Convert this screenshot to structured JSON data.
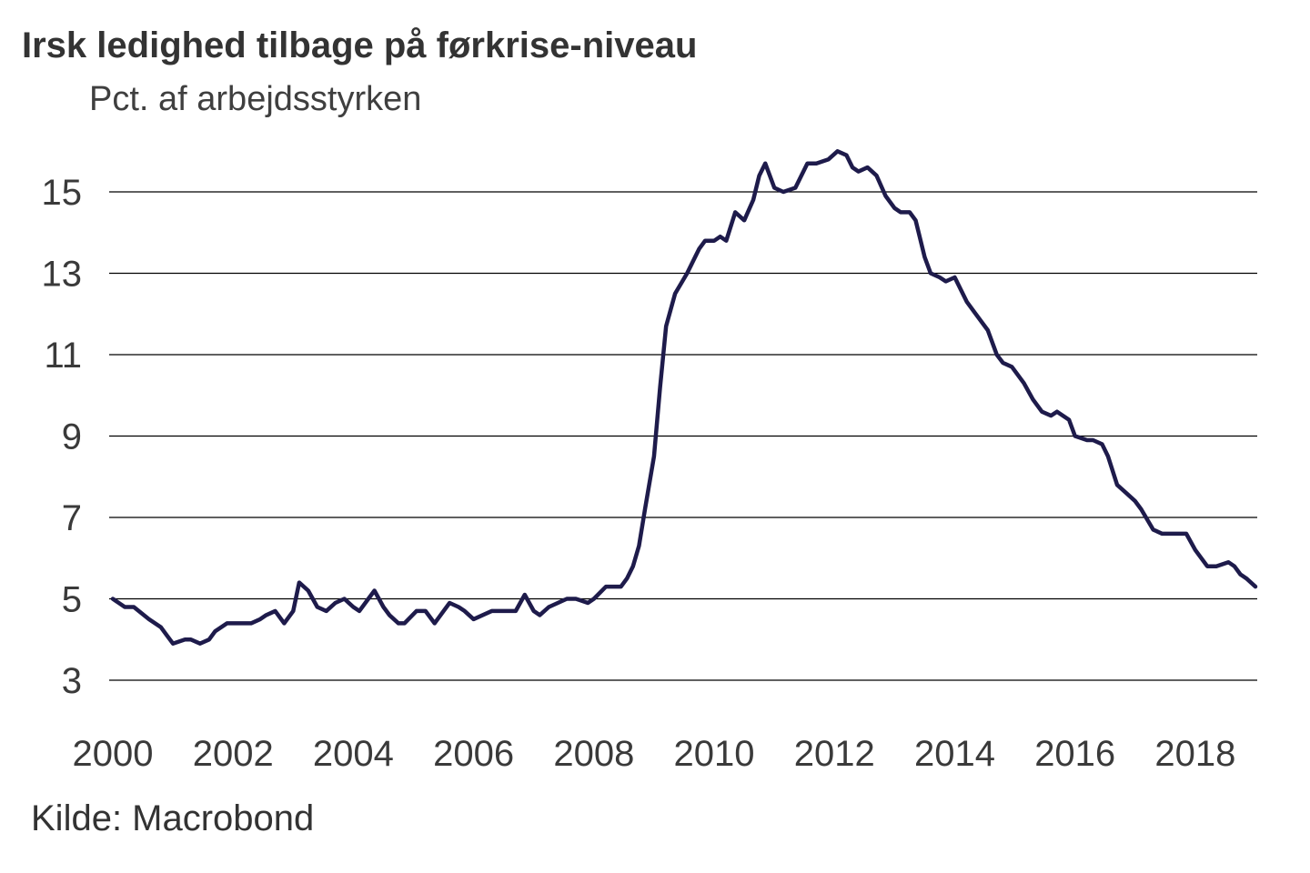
{
  "title": "Irsk ledighed tilbage på førkrise-niveau",
  "subtitle": "Pct. af arbejdsstyrken",
  "source": "Kilde: Macrobond",
  "colors": {
    "line": "#1e1b4b",
    "grid": "#000000",
    "text": "#3a3a3a"
  },
  "chart_data": {
    "type": "line",
    "title": "Irsk ledighed tilbage på førkrise-niveau",
    "ylabel": "Pct. af arbejdsstyrken",
    "xlabel": "",
    "ylim": [
      3,
      16
    ],
    "xlim": [
      2000.0,
      2019.0
    ],
    "yticks": [
      3,
      5,
      7,
      9,
      11,
      13,
      15
    ],
    "xticks": [
      2000,
      2002,
      2004,
      2006,
      2008,
      2010,
      2012,
      2014,
      2016,
      2018
    ],
    "grid": "horizontal",
    "legend": "none",
    "series": [
      {
        "x": [
          2000.0,
          2000.2,
          2000.35,
          2000.6,
          2000.8,
          2000.9,
          2001.0,
          2001.2,
          2001.3,
          2001.45,
          2001.6,
          2001.7,
          2001.9,
          2002.0,
          2002.2,
          2002.3,
          2002.45,
          2002.55,
          2002.7,
          2002.85,
          2003.0,
          2003.1,
          2003.25,
          2003.4,
          2003.55,
          2003.7,
          2003.85,
          2004.0,
          2004.1,
          2004.25,
          2004.35,
          2004.5,
          2004.6,
          2004.75,
          2004.85,
          2005.05,
          2005.2,
          2005.35,
          2005.5,
          2005.6,
          2005.75,
          2005.85,
          2006.0,
          2006.15,
          2006.3,
          2006.45,
          2006.55,
          2006.7,
          2006.85,
          2007.0,
          2007.1,
          2007.25,
          2007.4,
          2007.55,
          2007.7,
          2007.9,
          2008.0,
          2008.2,
          2008.35,
          2008.45,
          2008.55,
          2008.65,
          2008.75,
          2008.85,
          2009.0,
          2009.1,
          2009.2,
          2009.35,
          2009.55,
          2009.75,
          2009.85,
          2010.0,
          2010.1,
          2010.2,
          2010.35,
          2010.5,
          2010.65,
          2010.75,
          2010.85,
          2011.0,
          2011.15,
          2011.35,
          2011.55,
          2011.7,
          2011.9,
          2012.05,
          2012.2,
          2012.3,
          2012.4,
          2012.55,
          2012.7,
          2012.85,
          2013.0,
          2013.1,
          2013.25,
          2013.35,
          2013.5,
          2013.6,
          2013.75,
          2013.85,
          2014.0,
          2014.2,
          2014.35,
          2014.55,
          2014.7,
          2014.8,
          2014.95,
          2015.15,
          2015.3,
          2015.45,
          2015.6,
          2015.7,
          2015.9,
          2016.0,
          2016.2,
          2016.3,
          2016.45,
          2016.55,
          2016.7,
          2016.85,
          2017.0,
          2017.1,
          2017.3,
          2017.45,
          2017.6,
          2017.85,
          2018.0,
          2018.2,
          2018.35,
          2018.55,
          2018.65,
          2018.75,
          2018.85,
          2019.0
        ],
        "values": [
          5.0,
          4.8,
          4.8,
          4.5,
          4.3,
          4.1,
          3.9,
          4.0,
          4.0,
          3.9,
          4.0,
          4.2,
          4.4,
          4.4,
          4.4,
          4.4,
          4.5,
          4.6,
          4.7,
          4.4,
          4.7,
          5.4,
          5.2,
          4.8,
          4.7,
          4.9,
          5.0,
          4.8,
          4.7,
          5.0,
          5.2,
          4.8,
          4.6,
          4.4,
          4.4,
          4.7,
          4.7,
          4.4,
          4.7,
          4.9,
          4.8,
          4.7,
          4.5,
          4.6,
          4.7,
          4.7,
          4.7,
          4.7,
          5.1,
          4.7,
          4.6,
          4.8,
          4.9,
          5.0,
          5.0,
          4.9,
          5.0,
          5.3,
          5.3,
          5.3,
          5.5,
          5.8,
          6.3,
          7.2,
          8.5,
          10.2,
          11.7,
          12.5,
          13.0,
          13.6,
          13.8,
          13.8,
          13.9,
          13.8,
          14.5,
          14.3,
          14.8,
          15.4,
          15.7,
          15.1,
          15.0,
          15.1,
          15.7,
          15.7,
          15.8,
          16.0,
          15.9,
          15.6,
          15.5,
          15.6,
          15.4,
          14.9,
          14.6,
          14.5,
          14.5,
          14.3,
          13.4,
          13.0,
          12.9,
          12.8,
          12.9,
          12.3,
          12.0,
          11.6,
          11.0,
          10.8,
          10.7,
          10.3,
          9.9,
          9.6,
          9.5,
          9.6,
          9.4,
          9.0,
          8.9,
          8.9,
          8.8,
          8.5,
          7.8,
          7.6,
          7.4,
          7.2,
          6.7,
          6.6,
          6.6,
          6.6,
          6.2,
          5.8,
          5.8,
          5.9,
          5.8,
          5.6,
          5.5,
          5.3
        ]
      }
    ]
  }
}
